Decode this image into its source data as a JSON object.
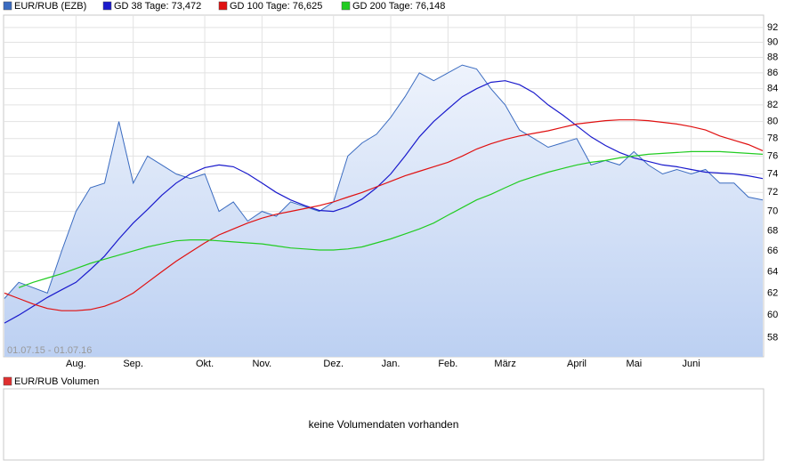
{
  "chart_data": {
    "type": "line",
    "log": true,
    "grid": true,
    "annotation": "01.07.15 - 01.07.16",
    "categories": [
      null,
      null,
      null,
      null,
      null,
      "Aug.",
      null,
      null,
      null,
      "Sep.",
      null,
      null,
      null,
      null,
      "Okt.",
      null,
      null,
      null,
      "Nov.",
      null,
      null,
      null,
      null,
      "Dez.",
      null,
      null,
      null,
      "Jan.",
      null,
      null,
      null,
      "Feb.",
      null,
      null,
      null,
      "März",
      null,
      null,
      null,
      null,
      "April",
      null,
      null,
      null,
      "Mai",
      null,
      null,
      null,
      "Juni",
      null,
      null,
      null,
      null,
      null
    ],
    "series": [
      {
        "name": "EUR/RUB (EZB)",
        "color": "#3a6bc0",
        "fill": true,
        "values": [
          61.5,
          63,
          62.5,
          62,
          66,
          70,
          72.5,
          73,
          80,
          73,
          76,
          75,
          74,
          73.5,
          74,
          70,
          71,
          69,
          70,
          69.5,
          71,
          70.5,
          70,
          71,
          76,
          77.5,
          78.5,
          80.5,
          83,
          86,
          85,
          86,
          87,
          86.5,
          84,
          82,
          79,
          78,
          77,
          77.5,
          78,
          75,
          75.5,
          75,
          76.5,
          75,
          74,
          74.5,
          74,
          74.5,
          73,
          73,
          71.5,
          71.2
        ]
      },
      {
        "name": "GD 38 Tage: 73,472",
        "color": "#1a1acc",
        "values": [
          59.3,
          60,
          60.8,
          61.6,
          62.3,
          63,
          64.2,
          65.5,
          67.2,
          68.8,
          70.2,
          71.7,
          73,
          74,
          74.7,
          75,
          74.8,
          74,
          73,
          72,
          71.2,
          70.6,
          70.1,
          70,
          70.5,
          71.3,
          72.5,
          74,
          76,
          78.2,
          80,
          81.5,
          83,
          84,
          84.8,
          85,
          84.5,
          83.5,
          82,
          80.8,
          79.5,
          78.2,
          77.2,
          76.4,
          75.8,
          75.4,
          75,
          74.8,
          74.5,
          74.2,
          74.1,
          74,
          73.8,
          73.5
        ]
      },
      {
        "name": "GD 100 Tage: 76,625",
        "color": "#e01010",
        "values": [
          62,
          61.5,
          61,
          60.6,
          60.4,
          60.4,
          60.5,
          60.8,
          61.3,
          62,
          63,
          64,
          65,
          65.9,
          66.8,
          67.6,
          68.2,
          68.8,
          69.3,
          69.7,
          70,
          70.3,
          70.6,
          71,
          71.5,
          72,
          72.6,
          73.2,
          73.8,
          74.3,
          74.8,
          75.3,
          76,
          76.8,
          77.4,
          77.9,
          78.3,
          78.6,
          78.9,
          79.3,
          79.7,
          79.9,
          80.1,
          80.2,
          80.2,
          80.1,
          79.9,
          79.7,
          79.4,
          79,
          78.3,
          77.8,
          77.3,
          76.6
        ]
      },
      {
        "name": "GD 200 Tage: 76,148",
        "color": "#22cc22",
        "values": [
          null,
          62.5,
          63,
          63.4,
          63.8,
          64.3,
          64.8,
          65.2,
          65.6,
          66,
          66.4,
          66.7,
          67,
          67.1,
          67.1,
          67,
          66.9,
          66.8,
          66.7,
          66.5,
          66.3,
          66.2,
          66.1,
          66.1,
          66.2,
          66.4,
          66.8,
          67.2,
          67.7,
          68.2,
          68.8,
          69.6,
          70.4,
          71.2,
          71.8,
          72.5,
          73.2,
          73.7,
          74.2,
          74.6,
          75,
          75.3,
          75.5,
          75.8,
          76,
          76.2,
          76.3,
          76.4,
          76.5,
          76.5,
          76.5,
          76.4,
          76.3,
          76.2
        ]
      }
    ],
    "ylim": [
      56.4,
      93.7
    ],
    "yticks": [
      58,
      60,
      62,
      64,
      66,
      68,
      70,
      72,
      74,
      76,
      78,
      80,
      82,
      84,
      86,
      88,
      90,
      92
    ]
  },
  "volume_panel": {
    "legend": "EUR/RUB Volumen",
    "color": "#e03030",
    "message": "keine Volumendaten vorhanden"
  }
}
